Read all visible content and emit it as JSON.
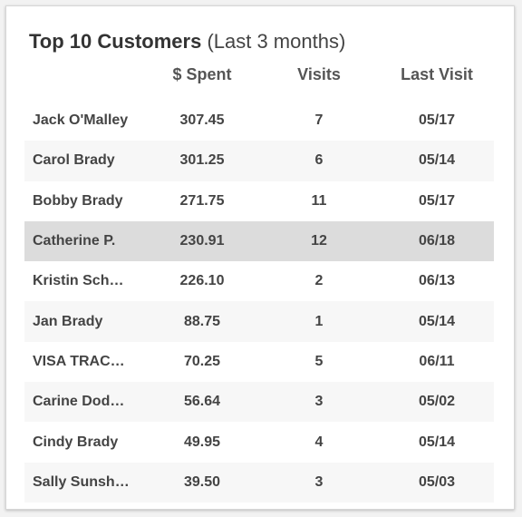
{
  "widget": {
    "title": "Top 10 Customers",
    "subtitle": "(Last 3 months)"
  },
  "table": {
    "columns": {
      "spent": "$ Spent",
      "visits": "Visits",
      "last_visit": "Last Visit"
    },
    "highlight_color": "#dcdcdc",
    "rows": [
      {
        "name": "Jack O'Malley",
        "spent": "307.45",
        "visits": "7",
        "last_visit": "05/17"
      },
      {
        "name": "Carol Brady",
        "spent": "301.25",
        "visits": "6",
        "last_visit": "05/14"
      },
      {
        "name": "Bobby Brady",
        "spent": "271.75",
        "visits": "11",
        "last_visit": "05/17"
      },
      {
        "name": "Catherine P.",
        "spent": "230.91",
        "visits": "12",
        "last_visit": "06/18",
        "highlighted": true
      },
      {
        "name": "Kristin Sch…",
        "spent": "226.10",
        "visits": "2",
        "last_visit": "06/13"
      },
      {
        "name": "Jan Brady",
        "spent": "88.75",
        "visits": "1",
        "last_visit": "05/14"
      },
      {
        "name": "VISA TRAC…",
        "spent": "70.25",
        "visits": "5",
        "last_visit": "06/11"
      },
      {
        "name": "Carine Dod…",
        "spent": "56.64",
        "visits": "3",
        "last_visit": "05/02"
      },
      {
        "name": "Cindy Brady",
        "spent": "49.95",
        "visits": "4",
        "last_visit": "05/14"
      },
      {
        "name": "Sally Sunsh…",
        "spent": "39.50",
        "visits": "3",
        "last_visit": "05/03"
      }
    ]
  }
}
